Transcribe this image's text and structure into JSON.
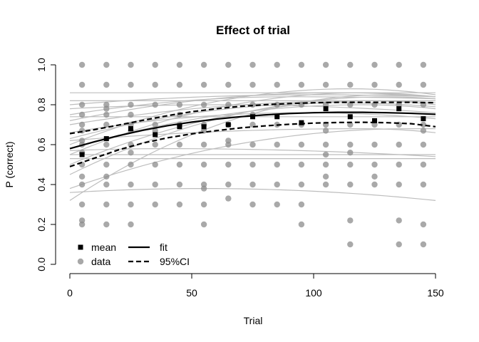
{
  "chart_data": {
    "type": "scatter",
    "title": "Effect of trial",
    "xlabel": "Trial",
    "ylabel": "P (correct)",
    "xlim": [
      0,
      150
    ],
    "ylim": [
      0,
      1
    ],
    "x_ticks": [
      0,
      50,
      100,
      150
    ],
    "y_ticks": [
      0.0,
      0.2,
      0.4,
      0.6,
      0.8,
      1.0
    ],
    "x_tick_labels": [
      "0",
      "50",
      "100",
      "150"
    ],
    "y_tick_labels": [
      "0.0",
      "0.2",
      "0.4",
      "0.6",
      "0.8",
      "1.0"
    ],
    "grid": false,
    "legend": {
      "placement": "bottom-left",
      "entries": [
        {
          "label": "mean",
          "kind": "square"
        },
        {
          "label": "fit",
          "kind": "solid-line"
        },
        {
          "label": "data",
          "kind": "dot"
        },
        {
          "label": "95%CI",
          "kind": "dashed-line"
        }
      ]
    },
    "series": [
      {
        "name": "mean",
        "x": [
          5,
          15,
          25,
          35,
          45,
          55,
          65,
          75,
          85,
          95,
          105,
          115,
          125,
          135,
          145
        ],
        "y": [
          0.55,
          0.63,
          0.68,
          0.65,
          0.69,
          0.69,
          0.7,
          0.74,
          0.74,
          0.71,
          0.78,
          0.74,
          0.72,
          0.78,
          0.73
        ]
      },
      {
        "name": "fit",
        "x": [
          0,
          10,
          20,
          30,
          40,
          50,
          60,
          70,
          80,
          90,
          100,
          110,
          120,
          130,
          140,
          150
        ],
        "y": [
          0.58,
          0.614,
          0.645,
          0.672,
          0.695,
          0.713,
          0.728,
          0.74,
          0.749,
          0.756,
          0.76,
          0.762,
          0.762,
          0.76,
          0.757,
          0.752
        ]
      },
      {
        "name": "95%CI upper",
        "x": [
          0,
          10,
          20,
          30,
          40,
          50,
          60,
          70,
          80,
          90,
          100,
          110,
          120,
          130,
          140,
          150
        ],
        "y": [
          0.655,
          0.675,
          0.698,
          0.722,
          0.745,
          0.765,
          0.78,
          0.792,
          0.8,
          0.806,
          0.81,
          0.812,
          0.812,
          0.812,
          0.812,
          0.81
        ]
      },
      {
        "name": "95%CI lower",
        "x": [
          0,
          10,
          20,
          30,
          40,
          50,
          60,
          70,
          80,
          90,
          100,
          110,
          120,
          130,
          140,
          150
        ],
        "y": [
          0.49,
          0.532,
          0.574,
          0.608,
          0.634,
          0.654,
          0.67,
          0.684,
          0.694,
          0.702,
          0.708,
          0.711,
          0.712,
          0.71,
          0.705,
          0.69
        ]
      }
    ],
    "data_points": {
      "x": [
        5,
        15,
        25,
        35,
        45,
        55,
        65,
        75,
        85,
        95,
        105,
        115,
        125,
        135,
        145
      ],
      "y_levels": [
        [
          0.2,
          0.22,
          0.3,
          0.4,
          0.44,
          0.5,
          0.56,
          0.6,
          0.62,
          0.67,
          0.7,
          0.75,
          0.8,
          0.9,
          1.0
        ],
        [
          0.2,
          0.3,
          0.4,
          0.44,
          0.5,
          0.6,
          0.7,
          0.75,
          0.78,
          0.8,
          0.9,
          1.0
        ],
        [
          0.2,
          0.3,
          0.4,
          0.5,
          0.56,
          0.6,
          0.67,
          0.7,
          0.75,
          0.8,
          0.9,
          1.0
        ],
        [
          0.3,
          0.4,
          0.5,
          0.6,
          0.67,
          0.7,
          0.8,
          0.9,
          1.0
        ],
        [
          0.3,
          0.4,
          0.5,
          0.6,
          0.7,
          0.75,
          0.8,
          0.9,
          1.0
        ],
        [
          0.2,
          0.3,
          0.38,
          0.4,
          0.5,
          0.6,
          0.67,
          0.7,
          0.8,
          0.9,
          1.0
        ],
        [
          0.33,
          0.4,
          0.5,
          0.6,
          0.62,
          0.7,
          0.8,
          0.9,
          1.0
        ],
        [
          0.3,
          0.4,
          0.5,
          0.6,
          0.7,
          0.75,
          0.8,
          0.9,
          1.0
        ],
        [
          0.3,
          0.4,
          0.5,
          0.6,
          0.7,
          0.8,
          0.9,
          1.0
        ],
        [
          0.2,
          0.3,
          0.4,
          0.5,
          0.6,
          0.7,
          0.8,
          0.9,
          1.0
        ],
        [
          0.4,
          0.44,
          0.5,
          0.55,
          0.6,
          0.67,
          0.7,
          0.8,
          0.9,
          1.0
        ],
        [
          0.1,
          0.22,
          0.4,
          0.5,
          0.56,
          0.6,
          0.7,
          0.8,
          0.9,
          1.0
        ],
        [
          0.4,
          0.44,
          0.5,
          0.6,
          0.7,
          0.8,
          0.9,
          1.0
        ],
        [
          0.1,
          0.22,
          0.4,
          0.5,
          0.6,
          0.7,
          0.8,
          0.9,
          1.0
        ],
        [
          0.1,
          0.2,
          0.4,
          0.5,
          0.6,
          0.67,
          0.7,
          0.8,
          0.9,
          1.0
        ]
      ]
    },
    "individual_fits": [
      {
        "y0": 0.86,
        "y150": 0.86,
        "peak_x": 75,
        "peak_y": 0.86
      },
      {
        "y0": 0.82,
        "y150": 0.82,
        "peak_x": 75,
        "peak_y": 0.82
      },
      {
        "y0": 0.74,
        "y150": 0.74,
        "peak_x": 75,
        "peak_y": 0.74
      },
      {
        "y0": 0.55,
        "y150": 0.55,
        "peak_x": 75,
        "peak_y": 0.55
      },
      {
        "y0": 0.53,
        "y150": 0.53,
        "peak_x": 75,
        "peak_y": 0.53
      },
      {
        "y0": 0.57,
        "y150": 0.54,
        "peak_x": 40,
        "peak_y": 0.58
      },
      {
        "y0": 0.36,
        "y150": 0.32,
        "peak_x": 55,
        "peak_y": 0.38
      },
      {
        "y0": 0.32,
        "y150": 0.84,
        "peak_x": 130,
        "peak_y": 0.85
      },
      {
        "y0": 0.38,
        "y150": 0.68,
        "peak_x": 140,
        "peak_y": 0.68
      },
      {
        "y0": 0.45,
        "y150": 0.83,
        "peak_x": 130,
        "peak_y": 0.84
      },
      {
        "y0": 0.5,
        "y150": 0.81,
        "peak_x": 125,
        "peak_y": 0.82
      },
      {
        "y0": 0.55,
        "y150": 0.84,
        "peak_x": 120,
        "peak_y": 0.86
      },
      {
        "y0": 0.6,
        "y150": 0.85,
        "peak_x": 115,
        "peak_y": 0.88
      },
      {
        "y0": 0.63,
        "y150": 0.79,
        "peak_x": 110,
        "peak_y": 0.81
      },
      {
        "y0": 0.66,
        "y150": 0.73,
        "peak_x": 95,
        "peak_y": 0.76
      },
      {
        "y0": 0.7,
        "y150": 0.8,
        "peak_x": 120,
        "peak_y": 0.82
      },
      {
        "y0": 0.72,
        "y150": 0.84,
        "peak_x": 110,
        "peak_y": 0.86
      },
      {
        "y0": 0.75,
        "y150": 0.83,
        "peak_x": 90,
        "peak_y": 0.84
      },
      {
        "y0": 0.78,
        "y150": 0.76,
        "peak_x": 60,
        "peak_y": 0.8
      },
      {
        "y0": 0.8,
        "y150": 0.84,
        "peak_x": 100,
        "peak_y": 0.85
      },
      {
        "y0": 0.62,
        "y150": 0.66,
        "peak_x": 120,
        "peak_y": 0.68
      },
      {
        "y0": 0.58,
        "y150": 0.78,
        "peak_x": 120,
        "peak_y": 0.8
      }
    ],
    "colors": {
      "mean": "#000000",
      "fit": "#000000",
      "data": "#8c8c8c",
      "individual_fits": "#bdbdbd",
      "axes": "#000000"
    }
  }
}
